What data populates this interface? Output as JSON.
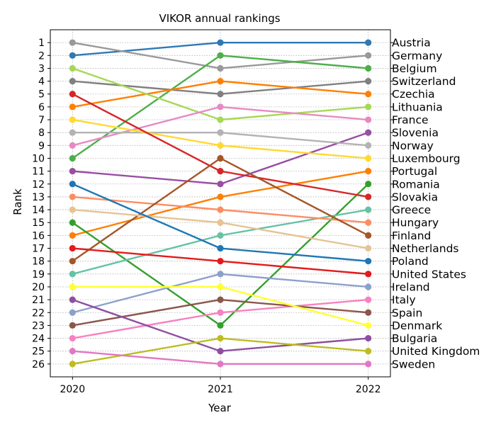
{
  "chart_data": {
    "type": "line",
    "title": "VIKOR annual rankings",
    "xlabel": "Year",
    "ylabel": "Rank",
    "x": [
      "2020",
      "2021",
      "2022"
    ],
    "ylim": [
      27,
      0
    ],
    "y_ticks": [
      1,
      2,
      3,
      4,
      5,
      6,
      7,
      8,
      9,
      10,
      11,
      12,
      13,
      14,
      15,
      16,
      17,
      18,
      19,
      20,
      21,
      22,
      23,
      24,
      25,
      26
    ],
    "grid": true,
    "right_labels": [
      "Austria",
      "Germany",
      "Belgium",
      "Switzerland",
      "Czechia",
      "Lithuania",
      "France",
      "Slovenia",
      "Norway",
      "Luxembourg",
      "Portugal",
      "Romania",
      "Slovakia",
      "Greece",
      "Hungary",
      "Finland",
      "Netherlands",
      "Poland",
      "United States",
      "Ireland",
      "Italy",
      "Spain",
      "Denmark",
      "Bulgaria",
      "United Kingdom",
      "Sweden"
    ],
    "series": [
      {
        "values": [
          2,
          1,
          1
        ],
        "color": "#2f78b4"
      },
      {
        "values": [
          1,
          3,
          2
        ],
        "color": "#999999"
      },
      {
        "values": [
          10,
          2,
          3
        ],
        "color": "#4daf4a"
      },
      {
        "values": [
          4,
          5,
          4
        ],
        "color": "#808080"
      },
      {
        "values": [
          6,
          4,
          5
        ],
        "color": "#ff7f00"
      },
      {
        "values": [
          3,
          7,
          6
        ],
        "color": "#a6d854"
      },
      {
        "values": [
          9,
          6,
          7
        ],
        "color": "#e78ac3"
      },
      {
        "values": [
          11,
          12,
          8
        ],
        "color": "#984ea3"
      },
      {
        "values": [
          8,
          8,
          9
        ],
        "color": "#b3b3b3"
      },
      {
        "values": [
          7,
          9,
          10
        ],
        "color": "#ffd92f"
      },
      {
        "values": [
          16,
          13,
          11
        ],
        "color": "#ff7f00"
      },
      {
        "values": [
          15,
          23,
          12
        ],
        "color": "#33a02c"
      },
      {
        "values": [
          5,
          11,
          13
        ],
        "color": "#d62728"
      },
      {
        "values": [
          19,
          16,
          14
        ],
        "color": "#66c2a5"
      },
      {
        "values": [
          13,
          14,
          15
        ],
        "color": "#fc8d62"
      },
      {
        "values": [
          18,
          10,
          16
        ],
        "color": "#a65628"
      },
      {
        "values": [
          14,
          15,
          17
        ],
        "color": "#e5c494"
      },
      {
        "values": [
          12,
          17,
          18
        ],
        "color": "#1f77b4"
      },
      {
        "values": [
          17,
          18,
          19
        ],
        "color": "#e41a1c"
      },
      {
        "values": [
          22,
          19,
          20
        ],
        "color": "#8da0cb"
      },
      {
        "values": [
          24,
          22,
          21
        ],
        "color": "#f781bf"
      },
      {
        "values": [
          23,
          21,
          22
        ],
        "color": "#8c564b"
      },
      {
        "values": [
          20,
          20,
          23
        ],
        "color": "#ffff33"
      },
      {
        "values": [
          21,
          25,
          24
        ],
        "color": "#8e4fa0"
      },
      {
        "values": [
          26,
          24,
          25
        ],
        "color": "#bcbd22"
      },
      {
        "values": [
          25,
          26,
          26
        ],
        "color": "#e377c2"
      }
    ]
  }
}
